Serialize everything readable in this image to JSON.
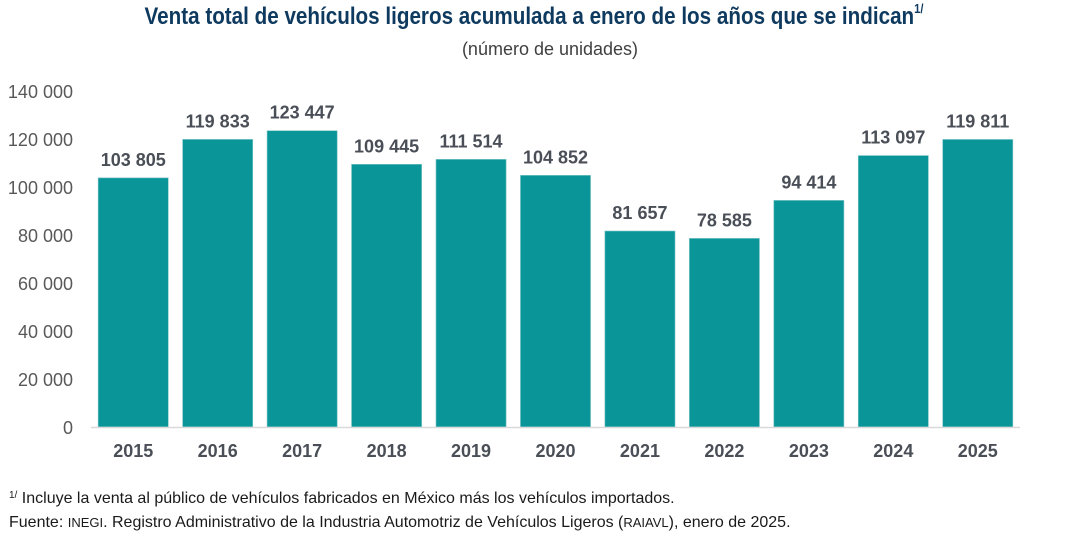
{
  "header": {
    "title": "Venta total de vehículos ligeros acumulada a enero de los años que se indican",
    "title_note_marker": "1/",
    "subtitle": "(número de unidades)"
  },
  "footnotes": {
    "note_marker": "1/",
    "note_text": " Incluye la venta al público de vehículos fabricados en México más los vehículos importados.",
    "source_prefix": "Fuente: ",
    "source_org": "INEGI",
    "source_text_1": ". Registro Administrativo de la Industria Automotriz de Vehículos Ligeros (",
    "source_acronym": "RAIAVL",
    "source_text_2": "), enero de 2025."
  },
  "colors": {
    "bar": "#0a9699",
    "title": "#0f3a5f",
    "labels": "#4a4f57",
    "axis": "#d9d9d9"
  },
  "chart_data": {
    "type": "bar",
    "title": "Venta total de vehículos ligeros acumulada a enero de los años que se indican",
    "subtitle": "(número de unidades)",
    "xlabel": "",
    "ylabel": "",
    "categories": [
      "2015",
      "2016",
      "2017",
      "2018",
      "2019",
      "2020",
      "2021",
      "2022",
      "2023",
      "2024",
      "2025"
    ],
    "values": [
      103805,
      119833,
      123447,
      109445,
      111514,
      104852,
      81657,
      78585,
      94414,
      113097,
      119811
    ],
    "data_labels": [
      "103 805",
      "119 833",
      "123 447",
      "109 445",
      "111 514",
      "104 852",
      "81 657",
      "78 585",
      "94 414",
      "113 097",
      "119 811"
    ],
    "ylim": [
      0,
      140000
    ],
    "yticks": [
      0,
      20000,
      40000,
      60000,
      80000,
      100000,
      120000,
      140000
    ],
    "ytick_labels": [
      "0",
      "20 000",
      "40 000",
      "60 000",
      "80 000",
      "100 000",
      "120 000",
      "140 000"
    ],
    "grid": false,
    "legend": "none"
  }
}
